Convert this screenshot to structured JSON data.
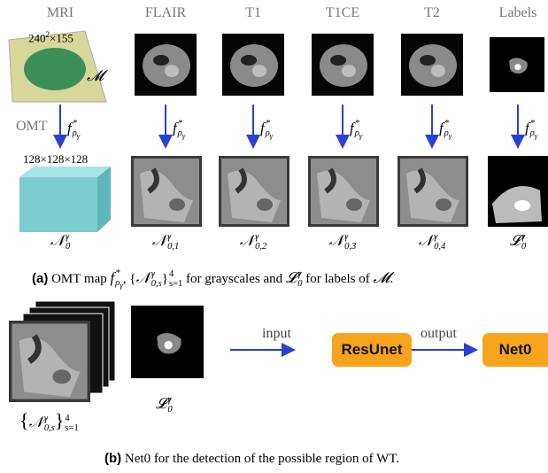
{
  "columns": [
    "MRI",
    "FLAIR",
    "T1",
    "T1CE",
    "T2",
    "Labels"
  ],
  "mri_size": {
    "base": "240",
    "sup": "2",
    "rest": "×155"
  },
  "mri_symbol": "𝓜",
  "omt": "OMT",
  "f_label": {
    "base": "f",
    "sup": "*",
    "sub": "ρ",
    "subsub": "γ"
  },
  "cube_size": "128×128×128",
  "outputs": [
    {
      "base": "𝒩",
      "sup": "γ",
      "sub": "0"
    },
    {
      "base": "𝒩",
      "sup": "γ",
      "sub": "0,1"
    },
    {
      "base": "𝒩",
      "sup": "γ",
      "sub": "0,2"
    },
    {
      "base": "𝒩",
      "sup": "γ",
      "sub": "0,3"
    },
    {
      "base": "𝒩",
      "sup": "γ",
      "sub": "0,4"
    },
    {
      "base": "𝓛",
      "sup": "γ",
      "sub": "0"
    }
  ],
  "caption_a": {
    "tag": "(a)",
    "t1": "OMT map",
    "sep": ",",
    "t2": "for grayscales and",
    "t3": "for labels of",
    "end": "."
  },
  "panel_b": {
    "set": {
      "open": "{",
      "base": "𝒩",
      "sup": "γ",
      "sub": "0,s",
      "close": "}",
      "upper": "4",
      "lower": "s=1"
    },
    "label": {
      "base": "𝓛",
      "sup": "γ",
      "sub": "0"
    },
    "input": "input",
    "model": "ResUnet",
    "output": "output",
    "result": "Net0"
  },
  "caption_b": {
    "tag": "(b)",
    "text": "Net0 for the detection of the possible region of WT."
  }
}
